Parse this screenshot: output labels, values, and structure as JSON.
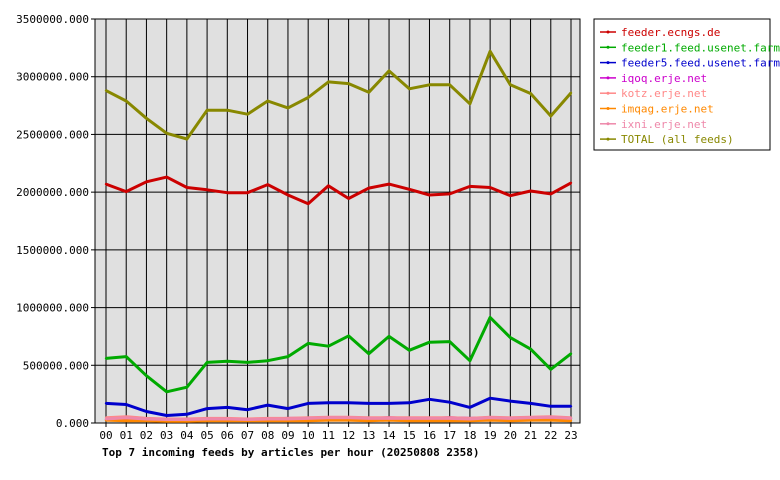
{
  "chart_data": {
    "type": "line",
    "title": "Top 7 incoming feeds by articles per hour (20250808 2358)",
    "xlabel": "",
    "ylabel": "",
    "categories": [
      "00",
      "01",
      "02",
      "03",
      "04",
      "05",
      "06",
      "07",
      "08",
      "09",
      "10",
      "11",
      "12",
      "13",
      "14",
      "15",
      "16",
      "17",
      "18",
      "19",
      "20",
      "21",
      "22",
      "23"
    ],
    "ylim": [
      0,
      3500000
    ],
    "yticks": [
      "0.000",
      "500000.000",
      "1000000.000",
      "1500000.000",
      "2000000.000",
      "2500000.000",
      "3000000.000",
      "3500000.000"
    ],
    "grid": true,
    "legend_position": "right",
    "background": "#e0e0e0",
    "series": [
      {
        "name": "feeder.ecngs.de",
        "color": "#cc0000",
        "values": [
          2070000,
          2005000,
          2090000,
          2130000,
          2040000,
          2020000,
          1995000,
          1995000,
          2065000,
          1975000,
          1900000,
          2055000,
          1945000,
          2035000,
          2070000,
          2025000,
          1975000,
          1985000,
          2050000,
          2040000,
          1970000,
          2010000,
          1985000,
          2080000
        ]
      },
      {
        "name": "feeder1.feed.usenet.farm",
        "color": "#00aa00",
        "values": [
          560000,
          575000,
          410000,
          270000,
          310000,
          525000,
          535000,
          525000,
          540000,
          575000,
          690000,
          665000,
          755000,
          600000,
          750000,
          630000,
          700000,
          705000,
          540000,
          915000,
          740000,
          640000,
          465000,
          600000
        ]
      },
      {
        "name": "feeder5.feed.usenet.farm",
        "color": "#0000cc",
        "values": [
          170000,
          160000,
          100000,
          65000,
          75000,
          125000,
          135000,
          115000,
          155000,
          125000,
          170000,
          175000,
          175000,
          170000,
          170000,
          175000,
          205000,
          180000,
          135000,
          215000,
          190000,
          170000,
          145000,
          145000
        ]
      },
      {
        "name": "iqoq.erje.net",
        "color": "#cc00cc",
        "values": [
          30000,
          40000,
          35000,
          30000,
          35000,
          35000,
          35000,
          30000,
          35000,
          40000,
          40000,
          45000,
          45000,
          40000,
          45000,
          40000,
          40000,
          45000,
          40000,
          45000,
          40000,
          45000,
          50000,
          40000
        ]
      },
      {
        "name": "kotz.erje.net",
        "color": "#ff8888",
        "values": [
          45000,
          55000,
          40000,
          35000,
          35000,
          40000,
          40000,
          35000,
          40000,
          40000,
          45000,
          50000,
          50000,
          45000,
          45000,
          45000,
          45000,
          45000,
          40000,
          50000,
          45000,
          50000,
          55000,
          45000
        ]
      },
      {
        "name": "imqag.erje.net",
        "color": "#ff8800",
        "values": [
          25000,
          20000,
          20000,
          15000,
          15000,
          20000,
          20000,
          20000,
          20000,
          20000,
          20000,
          25000,
          25000,
          20000,
          25000,
          20000,
          20000,
          20000,
          20000,
          25000,
          20000,
          25000,
          25000,
          20000
        ]
      },
      {
        "name": "ixni.erje.net",
        "color": "#ee88aa",
        "values": [
          35000,
          45000,
          35000,
          30000,
          30000,
          35000,
          35000,
          30000,
          35000,
          35000,
          40000,
          45000,
          45000,
          40000,
          40000,
          40000,
          40000,
          40000,
          35000,
          45000,
          40000,
          45000,
          50000,
          40000
        ]
      },
      {
        "name": "TOTAL (all feeds)",
        "color": "#888800",
        "values": [
          2880000,
          2790000,
          2640000,
          2510000,
          2460000,
          2710000,
          2710000,
          2675000,
          2790000,
          2730000,
          2820000,
          2955000,
          2940000,
          2865000,
          3050000,
          2895000,
          2930000,
          2930000,
          2765000,
          3220000,
          2930000,
          2855000,
          2660000,
          2860000
        ]
      }
    ]
  }
}
